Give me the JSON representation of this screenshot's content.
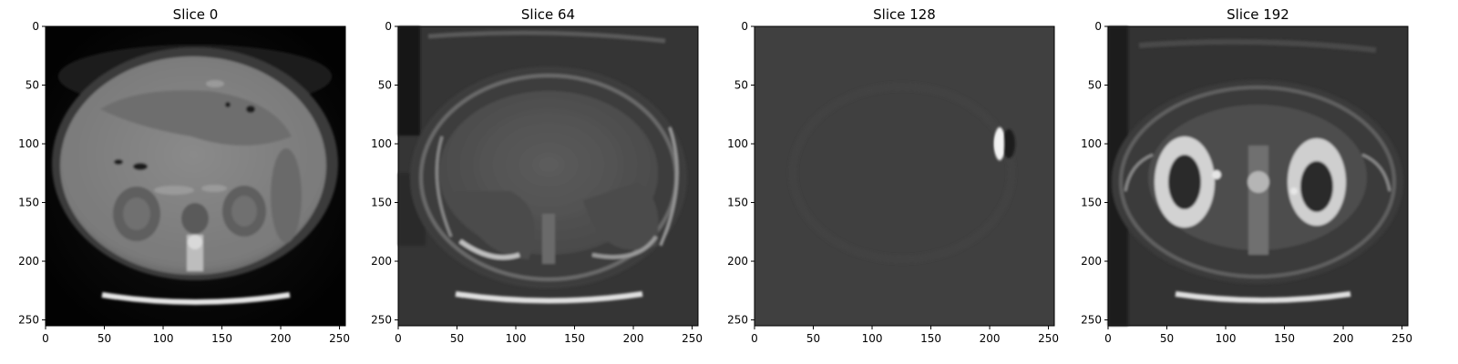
{
  "figure": {
    "panels": [
      {
        "title": "Slice 0"
      },
      {
        "title": "Slice 64"
      },
      {
        "title": "Slice 128"
      },
      {
        "title": "Slice 192"
      }
    ]
  },
  "chart_data": {
    "type": "heatmap",
    "colormap": "gray",
    "grid": false,
    "xlim": [
      0,
      255
    ],
    "ylim": [
      255,
      0
    ],
    "x_ticks": [
      0,
      50,
      100,
      150,
      200,
      250
    ],
    "y_ticks": [
      0,
      50,
      100,
      150,
      200,
      250
    ],
    "panels": [
      {
        "title": "Slice 0",
        "slice_index": 0,
        "background": "#050505",
        "content": "abdominal-ct-liver-spleen-kidneys"
      },
      {
        "title": "Slice 64",
        "slice_index": 64,
        "background": "#3a3a3a",
        "content": "abdominal-mri-liver-dome"
      },
      {
        "title": "Slice 128",
        "slice_index": 128,
        "background": "#404040",
        "content": "nearly-uniform-with-small-bright-spot"
      },
      {
        "title": "Slice 192",
        "slice_index": 192,
        "background": "#303030",
        "content": "abdominal-mri-kidneys"
      }
    ]
  }
}
